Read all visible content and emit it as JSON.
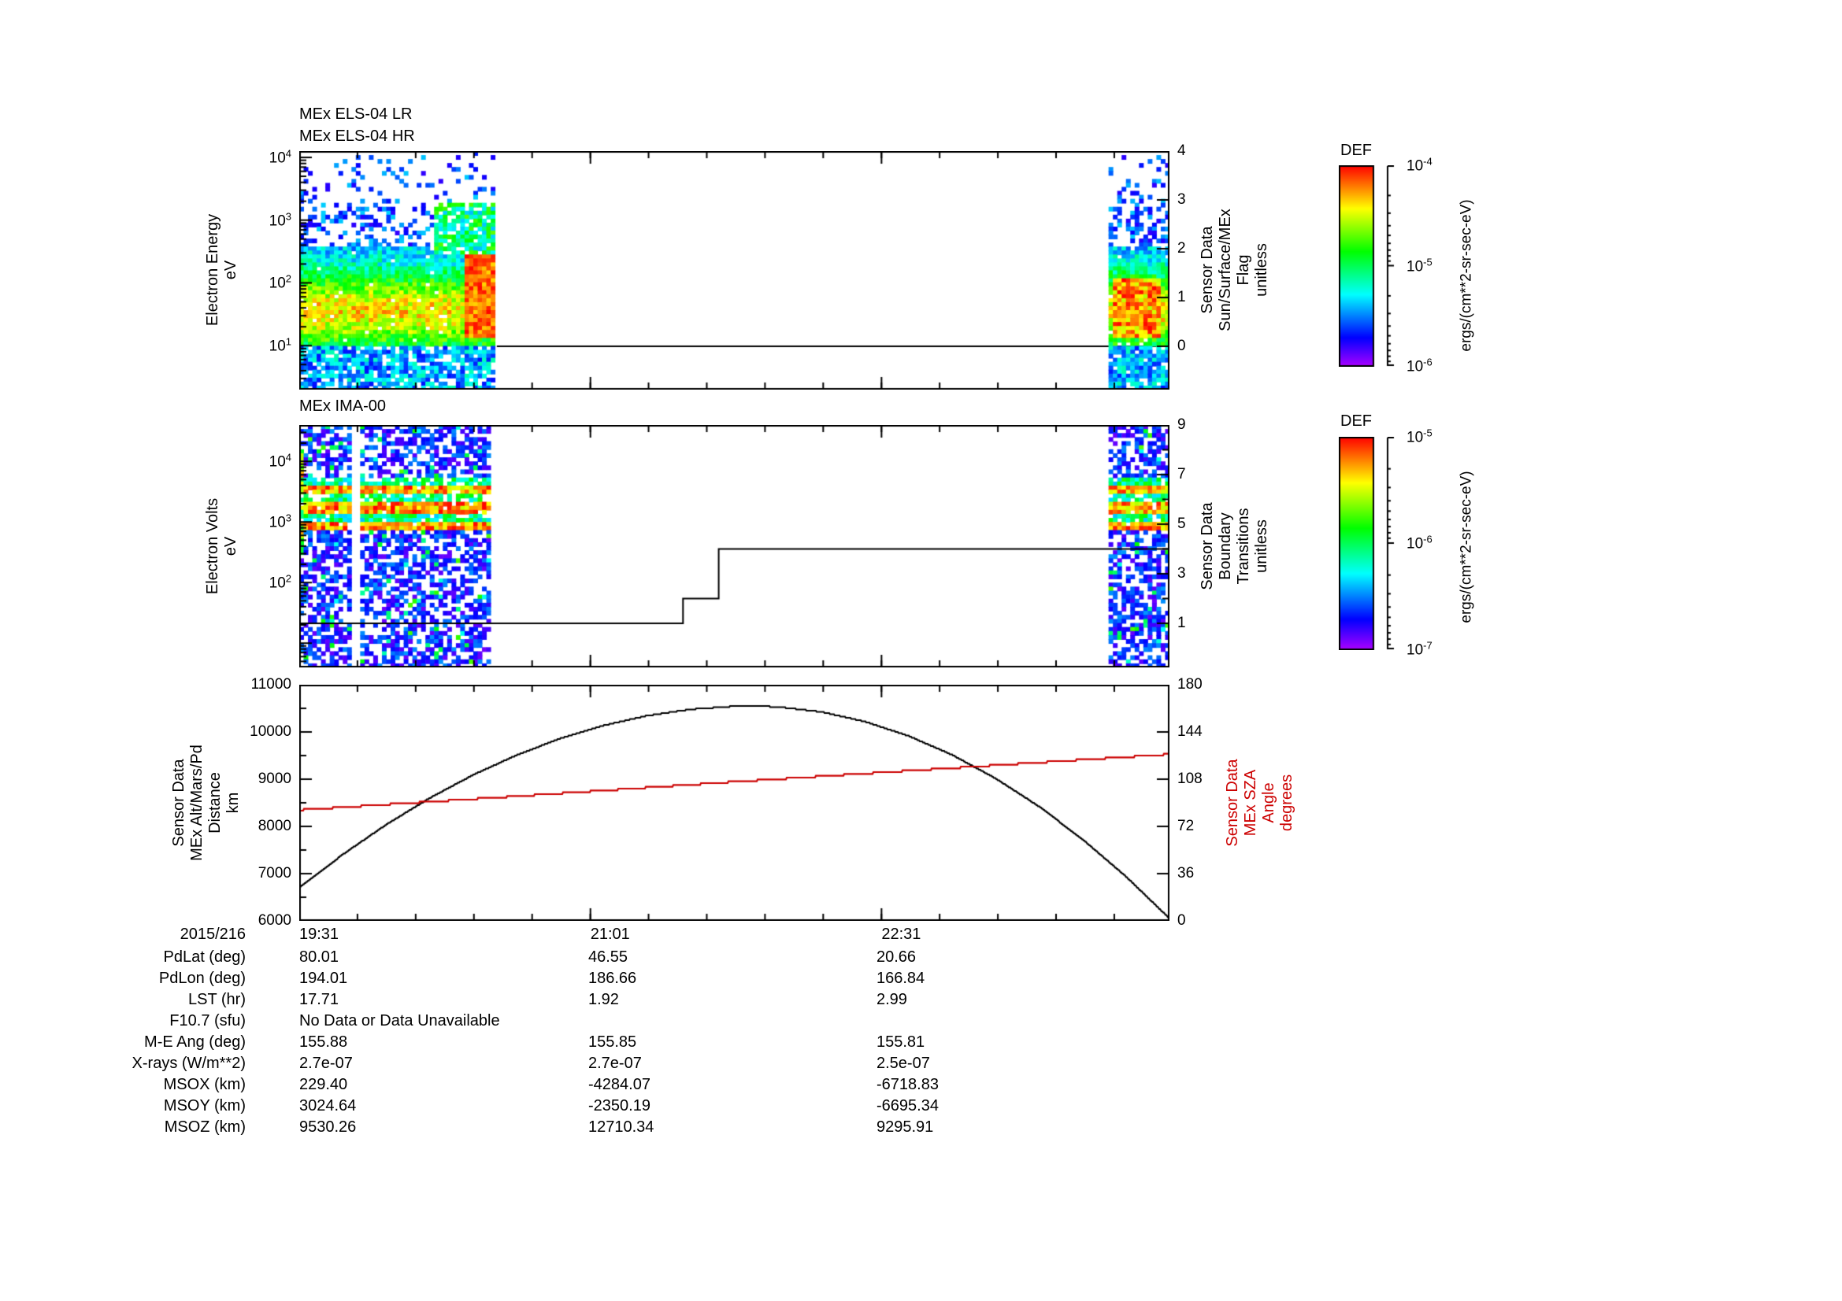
{
  "page": {
    "background": "#ffffff"
  },
  "chart_data": [
    {
      "id": "els",
      "type": "heatmap",
      "title_lines": [
        "MEx ELS-04 LR",
        "MEx ELS-04 HR"
      ],
      "ylabel_lines": [
        "Electron Energy",
        "eV"
      ],
      "y_axis": {
        "scale": "log",
        "log_range": [
          0.3,
          4.1
        ],
        "ticks": [
          {
            "base": "10",
            "exp": "4"
          },
          {
            "base": "10",
            "exp": "3"
          },
          {
            "base": "10",
            "exp": "2"
          },
          {
            "base": "10",
            "exp": "1"
          }
        ]
      },
      "right_axis": {
        "label_lines": [
          "Sensor Data",
          "Sun/Surface/MEx",
          "Flag",
          "unitless"
        ],
        "range": [
          -0.887,
          4
        ],
        "ticks": [
          {
            "v": 4,
            "label": "4"
          },
          {
            "v": 3,
            "label": "3"
          },
          {
            "v": 2,
            "label": "2"
          },
          {
            "v": 1,
            "label": "1"
          },
          {
            "v": 0,
            "label": "0"
          }
        ]
      },
      "flag_series": {
        "name": "Sun/Surface/MEx Flag",
        "value": 0,
        "x_start": 0.227
      },
      "data_regions": [
        [
          0,
          0.227
        ],
        [
          0.928,
          1
        ]
      ],
      "gap_regions": [],
      "spectral_band": {
        "log_e_center": 1.55,
        "log_e_width": 0.45,
        "hot_spot_x": [
          0.19,
          0.228
        ],
        "hot_spot_log_e": [
          1.1,
          2.45
        ]
      },
      "seed": 42,
      "colorbar": {
        "title": "DEF",
        "ticks": [
          {
            "base": "10",
            "exp": "-4"
          },
          {
            "base": "10",
            "exp": "-5"
          },
          {
            "base": "10",
            "exp": "-6"
          }
        ],
        "units": "ergs/(cm**2-sr-sec-eV)"
      }
    },
    {
      "id": "ima",
      "type": "heatmap",
      "title_lines": [
        "MEx IMA-00"
      ],
      "ylabel_lines": [
        "Electron Volts",
        "eV"
      ],
      "y_axis": {
        "scale": "log",
        "log_range": [
          0.6,
          4.6
        ],
        "ticks": [
          {
            "base": "10",
            "exp": "4"
          },
          {
            "base": "10",
            "exp": "3"
          },
          {
            "base": "10",
            "exp": "2"
          }
        ]
      },
      "right_axis": {
        "label_lines": [
          "Sensor Data",
          "Boundary",
          "Transitions",
          "unitless"
        ],
        "range": [
          -0.78,
          9
        ],
        "ticks": [
          {
            "v": 9,
            "label": "9"
          },
          {
            "v": 7,
            "label": "7"
          },
          {
            "v": 5,
            "label": "5"
          },
          {
            "v": 3,
            "label": "3"
          },
          {
            "v": 1,
            "label": "1"
          }
        ],
        "minor_ticks": [
          2,
          4,
          6,
          8
        ]
      },
      "boundary_series": {
        "name": "Boundary Transitions",
        "steps": [
          {
            "x0": 0,
            "x1": 0.441,
            "v": 1
          },
          {
            "x0": 0.441,
            "x1": 0.482,
            "v": 2
          },
          {
            "x0": 0.482,
            "x1": 1,
            "v": 4
          }
        ]
      },
      "data_regions": [
        [
          0,
          0.222
        ],
        [
          0.928,
          1
        ]
      ],
      "gap_regions": [
        [
          0.058,
          0.068
        ]
      ],
      "stripe_band_log_e": [
        2.85,
        3.75
      ],
      "seed": 7,
      "colorbar": {
        "title": "DEF",
        "ticks": [
          {
            "base": "10",
            "exp": "-5"
          },
          {
            "base": "10",
            "exp": "-6"
          },
          {
            "base": "10",
            "exp": "-7"
          }
        ],
        "units": "ergs/(cm**2-sr-sec-eV)"
      }
    },
    {
      "id": "orbit",
      "type": "line",
      "ylabel_lines": [
        "Sensor Data",
        "MEx Alt/Mars/Pd",
        "Distance",
        "km"
      ],
      "y_axis": {
        "range": [
          6000,
          11000
        ],
        "ticks": [
          {
            "v": 11000,
            "label": "11000"
          },
          {
            "v": 10000,
            "label": "10000"
          },
          {
            "v": 9000,
            "label": "9000"
          },
          {
            "v": 8000,
            "label": "8000"
          },
          {
            "v": 7000,
            "label": "7000"
          },
          {
            "v": 6000,
            "label": "6000"
          }
        ]
      },
      "right_axis": {
        "label_lines": [
          "Sensor Data",
          "MEx SZA",
          "Angle",
          "degrees"
        ],
        "range": [
          0,
          180
        ],
        "color": "#cc0000",
        "ticks": [
          {
            "v": 180,
            "label": "180"
          },
          {
            "v": 144,
            "label": "144"
          },
          {
            "v": 108,
            "label": "108"
          },
          {
            "v": 72,
            "label": "72"
          },
          {
            "v": 36,
            "label": "36"
          },
          {
            "v": 0,
            "label": "0"
          }
        ]
      },
      "series": [
        {
          "name": "MEx altitude (km)",
          "color": "#000000",
          "axis": "left",
          "quantize": 25,
          "points": [
            [
              0,
              6700
            ],
            [
              0.05,
              7405
            ],
            [
              0.1,
              8038
            ],
            [
              0.15,
              8601
            ],
            [
              0.2,
              9092
            ],
            [
              0.25,
              9512
            ],
            [
              0.3,
              9861
            ],
            [
              0.35,
              10139
            ],
            [
              0.4,
              10345
            ],
            [
              0.45,
              10480
            ],
            [
              0.5,
              10544
            ],
            [
              0.52,
              10550
            ],
            [
              0.55,
              10532
            ],
            [
              0.6,
              10425
            ],
            [
              0.65,
              10220
            ],
            [
              0.7,
              9917
            ],
            [
              0.75,
              9517
            ],
            [
              0.8,
              9019
            ],
            [
              0.85,
              8423
            ],
            [
              0.9,
              7730
            ],
            [
              0.95,
              6939
            ],
            [
              1,
              6050
            ]
          ]
        },
        {
          "name": "MEx SZA (degrees)",
          "color": "#cc0000",
          "axis": "right",
          "quantize": 1.4,
          "points": [
            [
              0,
              84.5
            ],
            [
              0.25,
              95
            ],
            [
              0.5,
              106
            ],
            [
              0.75,
              116.5
            ],
            [
              1,
              127
            ]
          ]
        }
      ]
    }
  ],
  "x_axis": {
    "date_label": "2015/216",
    "ticks": [
      {
        "label": "19:31",
        "t": 0
      },
      {
        "label": "21:01",
        "t": 0.3346
      },
      {
        "label": "22:31",
        "t": 0.6691
      }
    ],
    "minor_step_t": 0.0669
  },
  "table": {
    "rows": [
      {
        "label": "PdLat (deg)",
        "values": [
          "80.01",
          "46.55",
          "20.66"
        ]
      },
      {
        "label": "PdLon (deg)",
        "values": [
          "194.01",
          "186.66",
          "166.84"
        ]
      },
      {
        "label": "LST (hr)",
        "values": [
          "17.71",
          "1.92",
          "2.99"
        ]
      },
      {
        "label": "F10.7 (sfu)",
        "values": [
          "No Data or Data Unavailable"
        ]
      },
      {
        "label": "M-E Ang (deg)",
        "values": [
          "155.88",
          "155.85",
          "155.81"
        ]
      },
      {
        "label": "X-rays (W/m**2)",
        "values": [
          "2.7e-07",
          "2.7e-07",
          "2.5e-07"
        ]
      },
      {
        "label": "MSOX (km)",
        "values": [
          "229.40",
          "-4284.07",
          "-6718.83"
        ]
      },
      {
        "label": "MSOY (km)",
        "values": [
          "3024.64",
          "-2350.19",
          "-6695.34"
        ]
      },
      {
        "label": "MSOZ (km)",
        "values": [
          "9530.26",
          "12710.34",
          "9295.91"
        ]
      }
    ]
  }
}
